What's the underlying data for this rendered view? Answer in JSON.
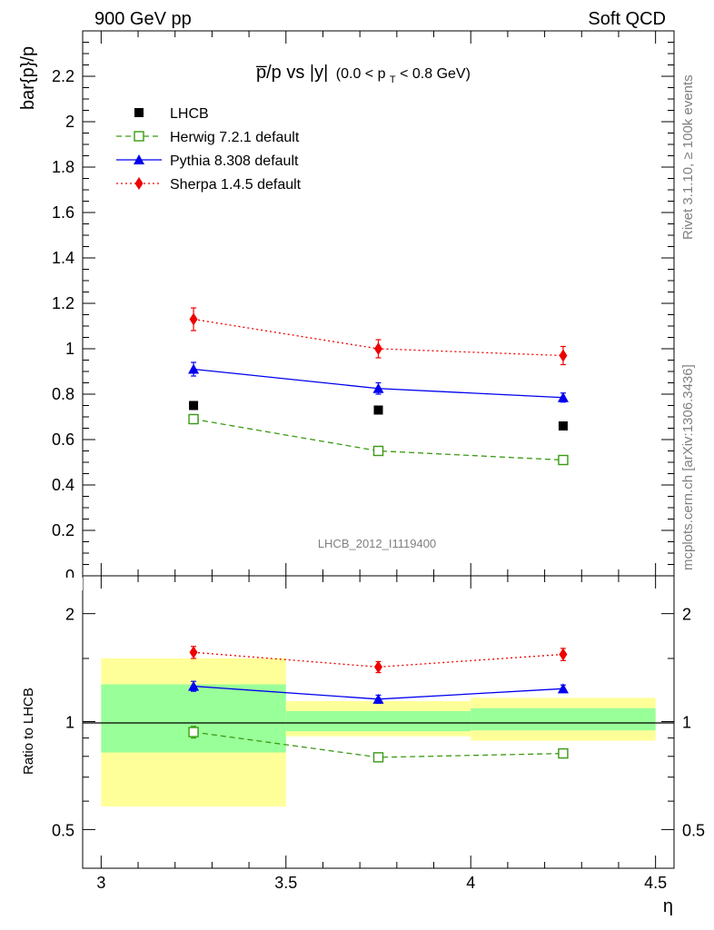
{
  "header": {
    "left_title": "900 GeV pp",
    "right_title": "Soft QCD"
  },
  "side_labels": {
    "rivet": "Rivet 3.1.10, ≥ 100k events",
    "mcplots": "mcplots.cern.ch [arXiv:1306.3436]"
  },
  "analysis_id": "LHCB_2012_I1119400",
  "plot_title": {
    "main": "p̅/p vs |y|",
    "sub": "(0.0 < p",
    "sub_subscript": "T",
    "sub_tail": " < 0.8 GeV)"
  },
  "colors": {
    "data": "#000000",
    "herwig": "#3a9a13",
    "pythia": "#0000ee",
    "sherpa": "#ee0000",
    "band_outer": "#ffff99",
    "band_inner": "#99ff99"
  },
  "chart_data": [
    {
      "type": "scatter",
      "panel": "main",
      "xlabel": "",
      "ylabel": "bar{p}/p",
      "xlim": [
        2.95,
        4.55
      ],
      "ylim": [
        0,
        2.4
      ],
      "yticks": [
        "0",
        "0.2",
        "0.4",
        "0.6",
        "0.8",
        "1",
        "1.2",
        "1.4",
        "1.6",
        "1.8",
        "2",
        "2.2"
      ],
      "legend_position": "top-left",
      "x": [
        3.25,
        3.75,
        4.25
      ],
      "series": [
        {
          "name": "LHCB",
          "key": "data",
          "values": [
            0.75,
            0.73,
            0.66
          ],
          "errors": [
            0.0,
            0.0,
            0.0
          ],
          "marker": "filled-square",
          "line": "none"
        },
        {
          "name": "Herwig 7.2.1 default",
          "key": "herwig",
          "values": [
            0.69,
            0.55,
            0.51
          ],
          "errors": [
            0.02,
            0.01,
            0.01
          ],
          "marker": "open-square",
          "line": "dashed"
        },
        {
          "name": "Pythia 8.308 default",
          "key": "pythia",
          "values": [
            0.91,
            0.825,
            0.785
          ],
          "errors": [
            0.03,
            0.025,
            0.02
          ],
          "marker": "filled-triangle",
          "line": "solid"
        },
        {
          "name": "Sherpa 1.4.5 default",
          "key": "sherpa",
          "values": [
            1.13,
            1.0,
            0.97
          ],
          "errors": [
            0.05,
            0.04,
            0.04
          ],
          "marker": "filled-diamond",
          "line": "dotted"
        }
      ]
    },
    {
      "type": "scatter",
      "panel": "ratio",
      "xlabel": "η",
      "ylabel": "Ratio to LHCB",
      "xlim": [
        2.95,
        4.55
      ],
      "ylim": [
        0.39,
        2.55
      ],
      "yscale": "log",
      "xticks": [
        "3",
        "3.5",
        "4",
        "4.5"
      ],
      "yticks": [
        "0.5",
        "1",
        "2"
      ],
      "bands": {
        "bins": [
          [
            3.0,
            3.5
          ],
          [
            3.5,
            4.0
          ],
          [
            4.0,
            4.5
          ]
        ],
        "outer": [
          [
            0.58,
            1.5
          ],
          [
            0.91,
            1.14
          ],
          [
            0.885,
            1.165
          ]
        ],
        "inner": [
          [
            0.82,
            1.27
          ],
          [
            0.94,
            1.07
          ],
          [
            0.945,
            1.09
          ]
        ]
      },
      "x": [
        3.25,
        3.75,
        4.25
      ],
      "series": [
        {
          "name": "Herwig 7.2.1 default",
          "key": "herwig",
          "values": [
            0.935,
            0.795,
            0.815
          ],
          "errors": [
            0.035,
            0.018,
            0.018
          ]
        },
        {
          "name": "Pythia 8.308 default",
          "key": "pythia",
          "values": [
            1.255,
            1.155,
            1.235
          ],
          "errors": [
            0.04,
            0.03,
            0.03
          ]
        },
        {
          "name": "Sherpa 1.4.5 default",
          "key": "sherpa",
          "values": [
            1.56,
            1.42,
            1.54
          ],
          "errors": [
            0.06,
            0.05,
            0.06
          ]
        }
      ]
    }
  ]
}
